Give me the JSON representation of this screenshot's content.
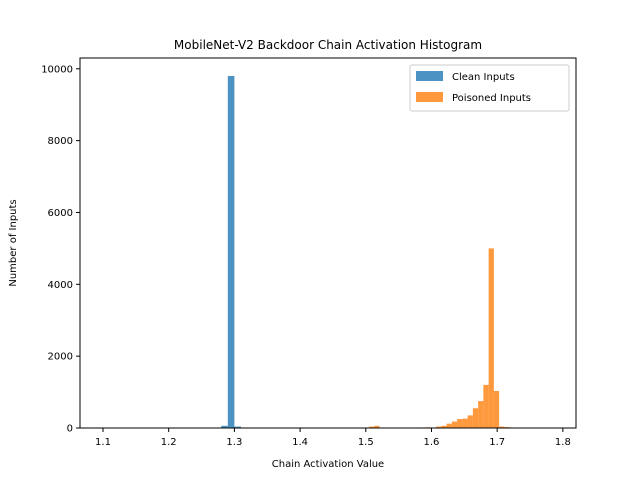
{
  "chart_data": {
    "type": "bar",
    "title": "MobileNet-V2 Backdoor Chain Activation Histogram",
    "xlabel": "Chain Activation Value",
    "ylabel": "Number of Inputs",
    "xlim": [
      1.065,
      1.82
    ],
    "ylim": [
      0,
      10300
    ],
    "xticks": [
      1.1,
      1.2,
      1.3,
      1.4,
      1.5,
      1.6,
      1.7,
      1.8
    ],
    "xtick_labels": [
      "1.1",
      "1.2",
      "1.3",
      "1.4",
      "1.5",
      "1.6",
      "1.7",
      "1.8"
    ],
    "yticks": [
      0,
      2000,
      4000,
      6000,
      8000,
      10000
    ],
    "ytick_labels": [
      "0",
      "2000",
      "4000",
      "6000",
      "8000",
      "10000"
    ],
    "grid": false,
    "legend_position": "upper-right",
    "series": [
      {
        "name": "Clean Inputs",
        "color": "#1f77b4",
        "bars": [
          {
            "x0": 1.28,
            "x1": 1.29,
            "value": 60
          },
          {
            "x0": 1.29,
            "x1": 1.3,
            "value": 9800
          },
          {
            "x0": 1.3,
            "x1": 1.31,
            "value": 40
          }
        ]
      },
      {
        "name": "Poisoned Inputs",
        "color": "#ff7f0e",
        "bars": [
          {
            "x0": 1.505,
            "x1": 1.513,
            "value": 40
          },
          {
            "x0": 1.513,
            "x1": 1.521,
            "value": 60
          },
          {
            "x0": 1.575,
            "x1": 1.583,
            "value": 10
          },
          {
            "x0": 1.583,
            "x1": 1.591,
            "value": 15
          },
          {
            "x0": 1.591,
            "x1": 1.599,
            "value": 20
          },
          {
            "x0": 1.607,
            "x1": 1.615,
            "value": 40
          },
          {
            "x0": 1.615,
            "x1": 1.623,
            "value": 60
          },
          {
            "x0": 1.623,
            "x1": 1.631,
            "value": 120
          },
          {
            "x0": 1.631,
            "x1": 1.639,
            "value": 180
          },
          {
            "x0": 1.639,
            "x1": 1.647,
            "value": 250
          },
          {
            "x0": 1.647,
            "x1": 1.655,
            "value": 260
          },
          {
            "x0": 1.655,
            "x1": 1.663,
            "value": 350
          },
          {
            "x0": 1.663,
            "x1": 1.671,
            "value": 550
          },
          {
            "x0": 1.671,
            "x1": 1.679,
            "value": 750
          },
          {
            "x0": 1.679,
            "x1": 1.687,
            "value": 1200
          },
          {
            "x0": 1.687,
            "x1": 1.695,
            "value": 5000
          },
          {
            "x0": 1.695,
            "x1": 1.703,
            "value": 1030
          },
          {
            "x0": 1.703,
            "x1": 1.711,
            "value": 40
          },
          {
            "x0": 1.711,
            "x1": 1.719,
            "value": 25
          }
        ]
      }
    ]
  }
}
